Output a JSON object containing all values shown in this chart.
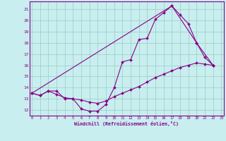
{
  "xlabel": "Windchill (Refroidissement éolien,°C)",
  "background_color": "#c8eef0",
  "line_color": "#880088",
  "grid_color": "#99ccbb",
  "yticks": [
    12,
    13,
    14,
    15,
    16,
    17,
    18,
    19,
    20,
    21
  ],
  "xticks": [
    0,
    1,
    2,
    3,
    4,
    5,
    6,
    7,
    8,
    9,
    10,
    11,
    12,
    13,
    14,
    15,
    16,
    17,
    18,
    19,
    20,
    21,
    22,
    23
  ],
  "line1_x": [
    0,
    1,
    2,
    3,
    4,
    5,
    6,
    7,
    8,
    9,
    10,
    11,
    12,
    13,
    14,
    15,
    16,
    17,
    18,
    19,
    20,
    21,
    22
  ],
  "line1_y": [
    13.5,
    13.3,
    13.7,
    13.7,
    13.0,
    13.0,
    12.1,
    11.9,
    11.9,
    12.5,
    14.0,
    16.3,
    16.5,
    18.3,
    18.4,
    20.1,
    20.7,
    21.3,
    20.5,
    19.7,
    18.0,
    16.7,
    16.0
  ],
  "line2_x": [
    0,
    1,
    2,
    3,
    4,
    5,
    6,
    7,
    8,
    9,
    10,
    11,
    12,
    13,
    14,
    15,
    16,
    17,
    18,
    19,
    20,
    21,
    22
  ],
  "line2_y": [
    13.5,
    13.3,
    13.7,
    13.4,
    13.1,
    13.0,
    12.9,
    12.7,
    12.6,
    12.8,
    13.2,
    13.5,
    13.8,
    14.1,
    14.5,
    14.9,
    15.2,
    15.5,
    15.8,
    16.0,
    16.2,
    16.1,
    16.0
  ],
  "line3_x": [
    0,
    17,
    20,
    22
  ],
  "line3_y": [
    13.5,
    21.3,
    18.0,
    16.0
  ]
}
